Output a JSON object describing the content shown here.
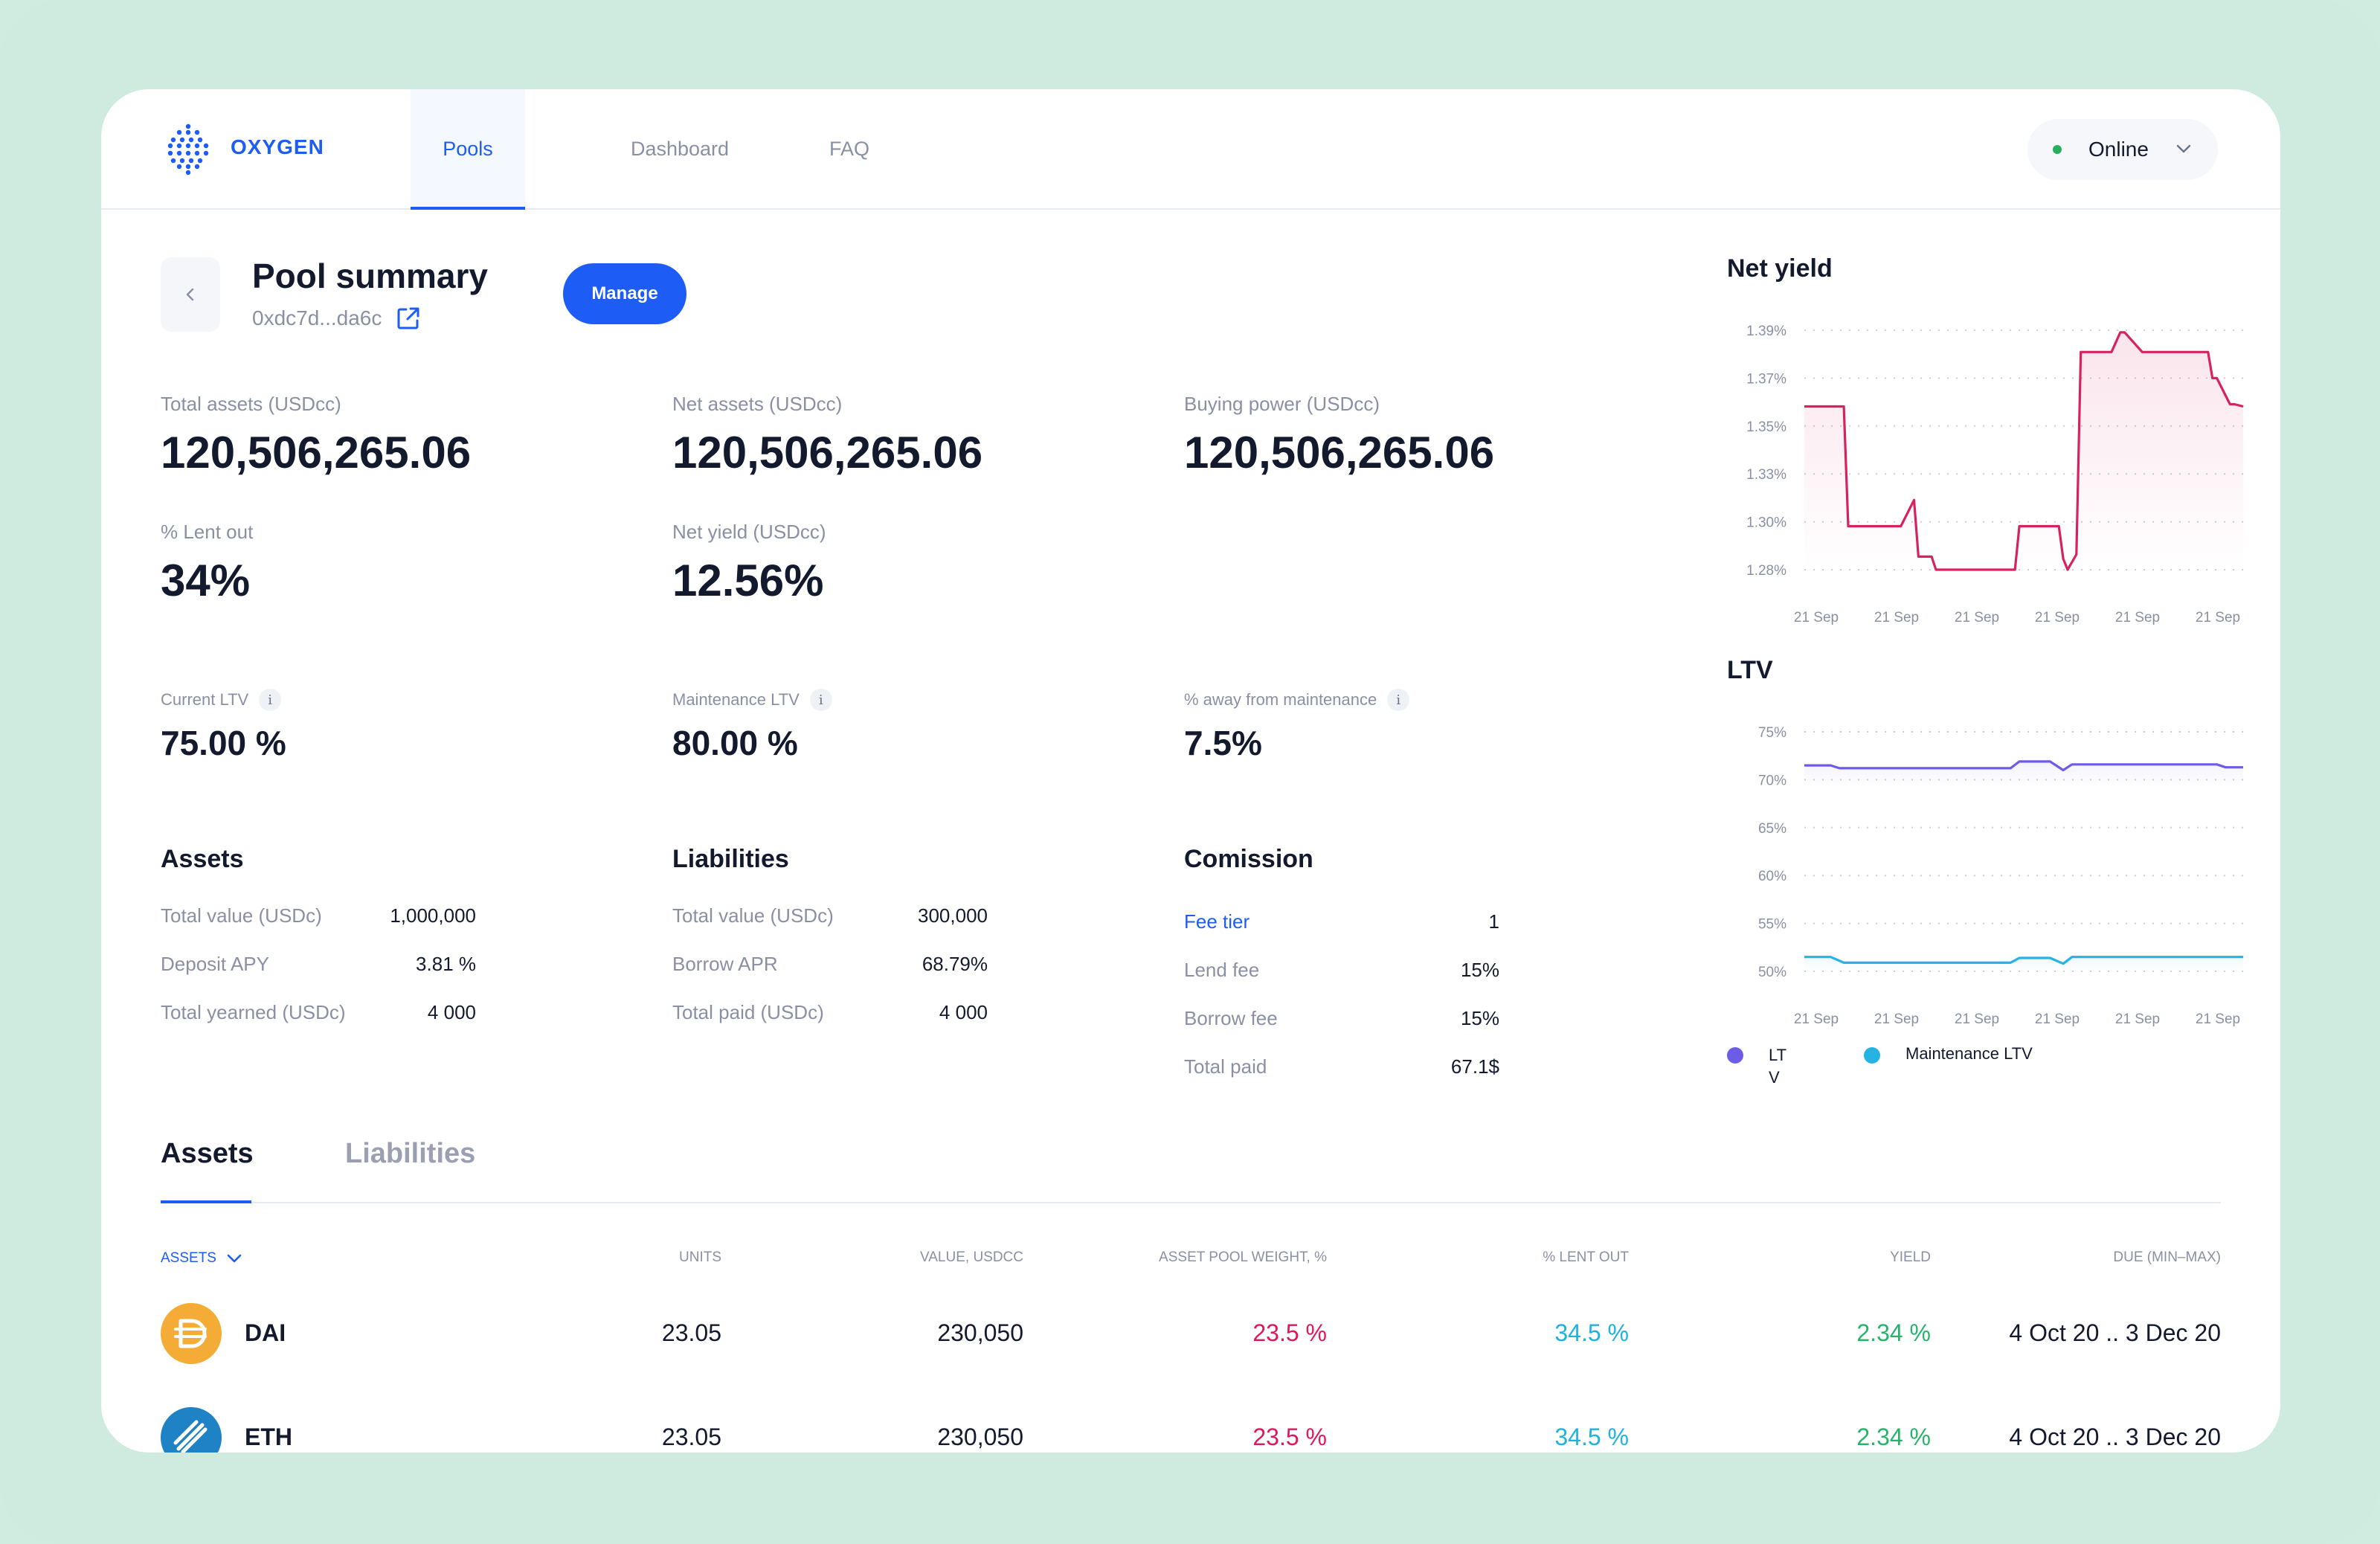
{
  "header": {
    "brand": "OXYGEN",
    "nav": [
      {
        "label": "Pools",
        "active": true
      },
      {
        "label": "Dashboard",
        "active": false
      },
      {
        "label": "FAQ",
        "active": false
      }
    ],
    "status": {
      "label": "Online",
      "color": "#27ae60"
    }
  },
  "summary": {
    "title": "Pool summary",
    "address": "0xdc7d...da6c",
    "manage_label": "Manage",
    "stats": [
      {
        "label": "Total assets (USDcc)",
        "value": "120,506,265.06"
      },
      {
        "label": "Net assets (USDcc)",
        "value": "120,506,265.06"
      },
      {
        "label": "Buying power (USDcc)",
        "value": "120,506,265.06"
      },
      {
        "label": "% Lent out",
        "value": "34%"
      },
      {
        "label": "Net yield (USDcc)",
        "value": "12.56%"
      }
    ],
    "ltv": [
      {
        "label": "Current LTV",
        "value": "75.00 %"
      },
      {
        "label": "Maintenance LTV",
        "value": "80.00 %"
      },
      {
        "label": "% away from maintenance",
        "value": "7.5%"
      }
    ],
    "info_glyph": "i"
  },
  "assets_section": {
    "title": "Assets",
    "rows": [
      {
        "label": "Total value (USDc)",
        "value": "1,000,000"
      },
      {
        "label": "Deposit APY",
        "value": "3.81 %"
      },
      {
        "label": "Total yearned (USDc)",
        "value": "4 000"
      }
    ]
  },
  "liabilities_section": {
    "title": "Liabilities",
    "rows": [
      {
        "label": "Total value (USDc)",
        "value": "300,000"
      },
      {
        "label": "Borrow APR",
        "value": "68.79%"
      },
      {
        "label": "Total paid (USDc)",
        "value": "4 000"
      }
    ]
  },
  "commission_section": {
    "title": "Comission",
    "rows": [
      {
        "label": "Fee tier",
        "value": "1"
      },
      {
        "label": "Lend fee",
        "value": "15%"
      },
      {
        "label": "Borrow fee",
        "value": "15%"
      },
      {
        "label": "Total paid",
        "value": "67.1$"
      }
    ]
  },
  "chart_data": [
    {
      "type": "line",
      "title": "Net yield",
      "x_ticks": [
        "21 Sep",
        "21 Sep",
        "21 Sep",
        "21 Sep",
        "21 Sep",
        "21 Sep"
      ],
      "y_ticks": [
        "1.39%",
        "1.37%",
        "1.35%",
        "1.33%",
        "1.30%",
        "1.28%"
      ],
      "grid": true,
      "area_fill": true,
      "series": [
        {
          "color": "#d6225e",
          "x": [
            0,
            0.09,
            0.1,
            0.22,
            0.25,
            0.26,
            0.29,
            0.3,
            0.48,
            0.49,
            0.58,
            0.59,
            0.6,
            0.62,
            0.63,
            0.7,
            0.72,
            0.73,
            0.77,
            0.79,
            0.92,
            0.93,
            0.94,
            0.97,
            0.98,
            1.0
          ],
          "y": [
            1.355,
            1.355,
            1.3,
            1.3,
            1.312,
            1.286,
            1.286,
            1.28,
            1.28,
            1.3,
            1.3,
            1.285,
            1.28,
            1.287,
            1.38,
            1.38,
            1.389,
            1.389,
            1.38,
            1.38,
            1.38,
            1.368,
            1.368,
            1.356,
            1.356,
            1.355
          ]
        }
      ]
    },
    {
      "type": "line",
      "title": "LTV",
      "x_ticks": [
        "21 Sep",
        "21 Sep",
        "21 Sep",
        "21 Sep",
        "21 Sep",
        "21 Sep"
      ],
      "y_ticks": [
        "75%",
        "70%",
        "65%",
        "60%",
        "55%",
        "50%"
      ],
      "grid": true,
      "legend_position": "bottom-left",
      "series": [
        {
          "name": "LT V",
          "color": "#6d5ce6",
          "x": [
            0,
            0.06,
            0.08,
            0.47,
            0.49,
            0.56,
            0.59,
            0.61,
            0.94,
            0.96,
            1.0
          ],
          "y": [
            71.5,
            71.5,
            71.2,
            71.2,
            71.9,
            71.9,
            71.0,
            71.6,
            71.6,
            71.3,
            71.3
          ]
        },
        {
          "name": "Maintenance LTV",
          "color": "#24b3e3",
          "x": [
            0,
            0.06,
            0.09,
            0.47,
            0.49,
            0.56,
            0.59,
            0.61,
            1.0
          ],
          "y": [
            51.5,
            51.5,
            50.9,
            50.9,
            51.4,
            51.4,
            50.8,
            51.5,
            51.5
          ]
        }
      ]
    }
  ],
  "tabs": [
    {
      "label": "Assets",
      "active": true
    },
    {
      "label": "Liabilities",
      "active": false
    }
  ],
  "table": {
    "columns": [
      "ASSETS",
      "UNITS",
      "VALUE, USDCC",
      "ASSET POOL WEIGHT, %",
      "% LENT OUT",
      "YIELD",
      "DUE (MIN–MAX)"
    ],
    "rows": [
      {
        "asset": "DAI",
        "icon": "dai-coin-icon",
        "icon_color": "#f5ac37",
        "units": "23.05",
        "value": "230,050",
        "weight": "23.5 %",
        "lent": "34.5 %",
        "yield": "2.34 %",
        "due": "4 Oct 20 .. 3 Dec 20"
      },
      {
        "asset": "ETH",
        "icon": "eth-coin-icon",
        "icon_color": "#1f82c4",
        "units": "23.05",
        "value": "230,050",
        "weight": "23.5 %",
        "lent": "34.5 %",
        "yield": "2.34 %",
        "due": "4 Oct 20 .. 3 Dec 20"
      }
    ]
  },
  "colors": {
    "accent": "#1d5cf5",
    "background": "#cfeadf",
    "weight": "#e0175b",
    "lent": "#1fb2e0",
    "yield": "#28b36b"
  }
}
